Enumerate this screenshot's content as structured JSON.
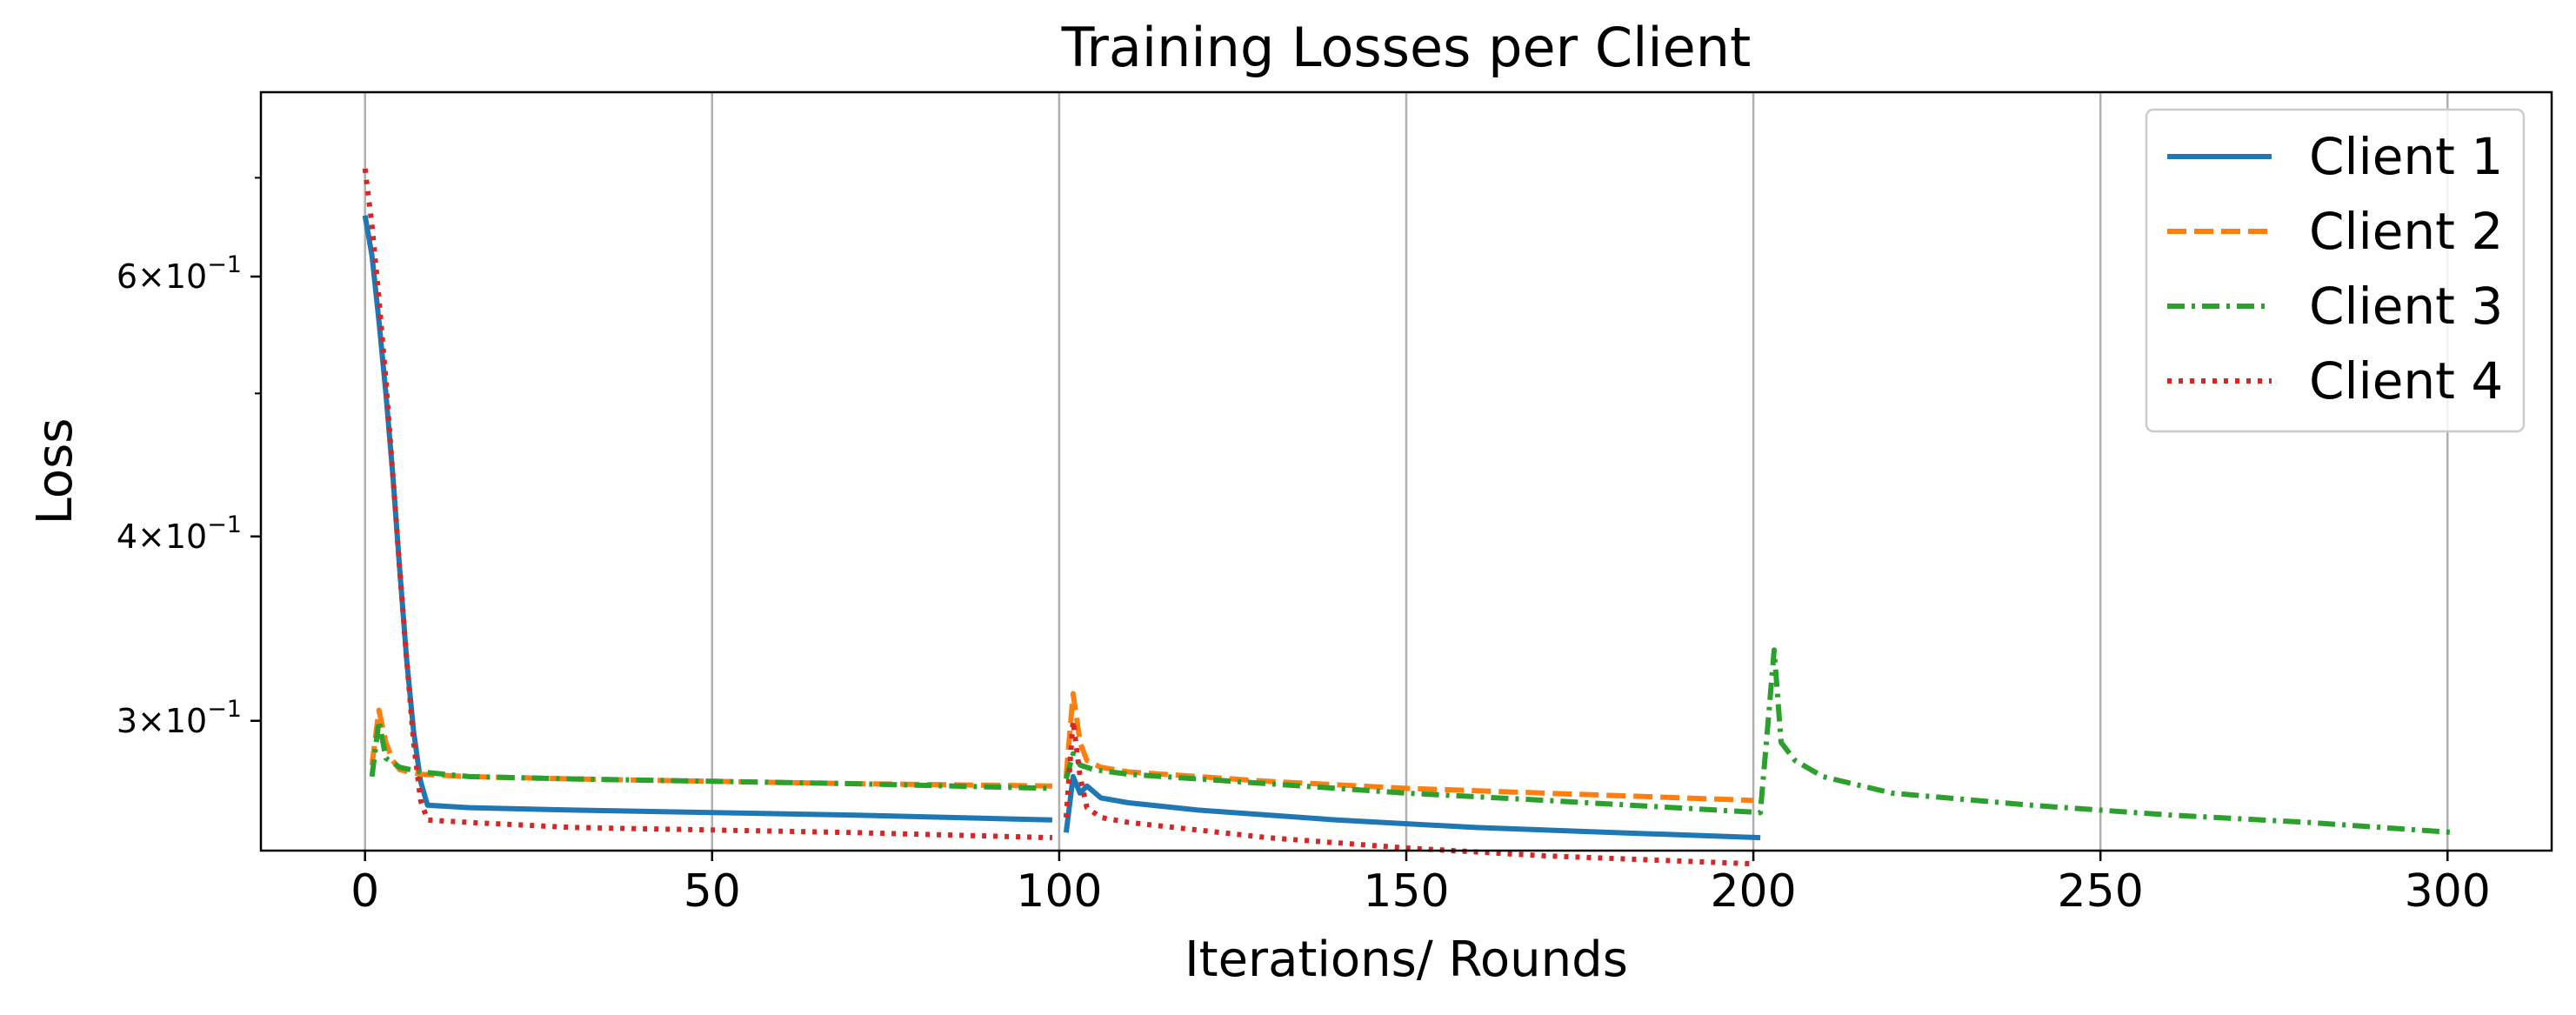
{
  "chart_data": {
    "type": "line",
    "title": "Training Losses per Client",
    "xlabel": "Iterations/ Rounds",
    "ylabel": "Loss",
    "yscale": "log",
    "xlim": [
      -15,
      315
    ],
    "ylim": [
      0.245,
      0.8
    ],
    "xticks": [
      0,
      50,
      100,
      150,
      200,
      250,
      300
    ],
    "xtick_labels": [
      "0",
      "50",
      "100",
      "150",
      "200",
      "250",
      "300"
    ],
    "yticks": [
      0.6,
      0.4,
      0.3
    ],
    "ytick_labels": [
      {
        "mant": "6",
        "exp": "−1"
      },
      {
        "mant": "4",
        "exp": "−1"
      },
      {
        "mant": "3",
        "exp": "−1"
      }
    ],
    "grid": "vertical",
    "legend_position": "top-right",
    "series": [
      {
        "name": "Client 1",
        "color": "#1f77b4",
        "style": "solid",
        "segments": [
          [
            [
              0,
              0.66
            ],
            [
              1,
              0.62
            ],
            [
              2,
              0.56
            ],
            [
              3,
              0.5
            ],
            [
              4,
              0.44
            ],
            [
              5,
              0.38
            ],
            [
              6,
              0.33
            ],
            [
              7,
              0.295
            ],
            [
              8,
              0.273
            ],
            [
              9,
              0.263
            ],
            [
              15,
              0.262
            ],
            [
              30,
              0.261
            ],
            [
              50,
              0.26
            ],
            [
              70,
              0.259
            ],
            [
              99,
              0.257
            ]
          ],
          [
            [
              101,
              0.252
            ],
            [
              102,
              0.275
            ],
            [
              103,
              0.268
            ],
            [
              104,
              0.271
            ],
            [
              106,
              0.266
            ],
            [
              110,
              0.264
            ],
            [
              120,
              0.261
            ],
            [
              140,
              0.257
            ],
            [
              160,
              0.254
            ],
            [
              180,
              0.252
            ],
            [
              201,
              0.25
            ]
          ]
        ]
      },
      {
        "name": "Client 2",
        "color": "#ff7f0e",
        "style": "dashed",
        "segments": [
          [
            [
              1,
              0.28
            ],
            [
              2,
              0.305
            ],
            [
              3,
              0.29
            ],
            [
              4,
              0.282
            ],
            [
              5,
              0.278
            ],
            [
              8,
              0.276
            ],
            [
              15,
              0.275
            ],
            [
              30,
              0.274
            ],
            [
              50,
              0.273
            ],
            [
              70,
              0.272
            ],
            [
              99,
              0.271
            ]
          ],
          [
            [
              101,
              0.275
            ],
            [
              102,
              0.313
            ],
            [
              103,
              0.29
            ],
            [
              104,
              0.282
            ],
            [
              106,
              0.279
            ],
            [
              110,
              0.277
            ],
            [
              130,
              0.273
            ],
            [
              150,
              0.27
            ],
            [
              170,
              0.268
            ],
            [
              200,
              0.265
            ]
          ]
        ]
      },
      {
        "name": "Client 3",
        "color": "#2ca02c",
        "style": "dashdot",
        "segments": [
          [
            [
              1,
              0.275
            ],
            [
              2,
              0.3
            ],
            [
              3,
              0.283
            ],
            [
              5,
              0.279
            ],
            [
              8,
              0.277
            ],
            [
              15,
              0.275
            ],
            [
              30,
              0.274
            ],
            [
              50,
              0.273
            ],
            [
              70,
              0.272
            ],
            [
              99,
              0.27
            ]
          ],
          [
            [
              101,
              0.274
            ],
            [
              102,
              0.285
            ],
            [
              103,
              0.28
            ],
            [
              105,
              0.278
            ],
            [
              110,
              0.276
            ],
            [
              130,
              0.272
            ],
            [
              150,
              0.268
            ],
            [
              170,
              0.265
            ],
            [
              201,
              0.26
            ],
            [
              202,
              0.295
            ],
            [
              203,
              0.335
            ],
            [
              204,
              0.29
            ],
            [
              206,
              0.282
            ],
            [
              210,
              0.275
            ],
            [
              220,
              0.268
            ],
            [
              240,
              0.263
            ],
            [
              260,
              0.259
            ],
            [
              280,
              0.256
            ],
            [
              301,
              0.252
            ]
          ]
        ]
      },
      {
        "name": "Client 4",
        "color": "#d62728",
        "style": "dotted",
        "segments": [
          [
            [
              0,
              0.71
            ],
            [
              1,
              0.65
            ],
            [
              2,
              0.58
            ],
            [
              3,
              0.51
            ],
            [
              4,
              0.44
            ],
            [
              5,
              0.38
            ],
            [
              6,
              0.33
            ],
            [
              7,
              0.29
            ],
            [
              8,
              0.265
            ],
            [
              9,
              0.257
            ],
            [
              15,
              0.256
            ],
            [
              30,
              0.254
            ],
            [
              50,
              0.253
            ],
            [
              70,
              0.252
            ],
            [
              99,
              0.25
            ]
          ],
          [
            [
              101,
              0.258
            ],
            [
              102,
              0.3
            ],
            [
              103,
              0.275
            ],
            [
              104,
              0.262
            ],
            [
              106,
              0.258
            ],
            [
              110,
              0.256
            ],
            [
              130,
              0.25
            ],
            [
              150,
              0.246
            ],
            [
              170,
              0.243
            ],
            [
              200,
              0.24
            ]
          ]
        ]
      }
    ]
  }
}
